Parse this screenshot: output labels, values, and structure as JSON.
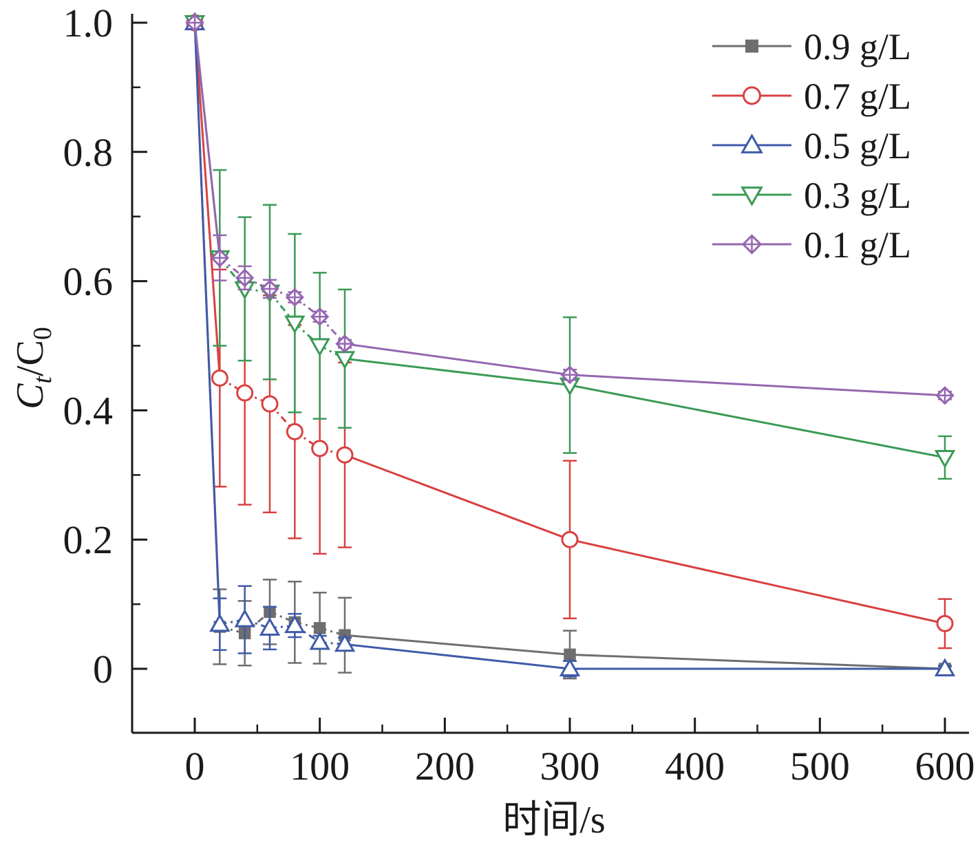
{
  "chart_data": {
    "type": "line",
    "xlabel": "时间/s",
    "ylabel_parts": {
      "main": "C",
      "sub": "t",
      "sep": "/C",
      "sub2": "0"
    },
    "xlim": [
      -50,
      620
    ],
    "ylim": [
      -0.1,
      1.0
    ],
    "xticks": [
      0,
      100,
      200,
      300,
      400,
      500,
      600
    ],
    "xtick_labels": [
      "0",
      "100",
      "200",
      "300",
      "400",
      "500",
      "600"
    ],
    "yticks": [
      0,
      0.2,
      0.4,
      0.6,
      0.8,
      1.0
    ],
    "ytick_labels": [
      "0",
      "0.2",
      "0.4",
      "0.6",
      "0.8",
      "1.0"
    ],
    "legend_position": "top-right",
    "x": [
      0,
      20,
      40,
      60,
      80,
      100,
      120,
      300,
      600
    ],
    "series": [
      {
        "name": "0.9 g/L",
        "color": "#6e6e6e",
        "marker": "filled-square",
        "dashed_until": 120,
        "values": [
          1.0,
          0.065,
          0.055,
          0.088,
          0.072,
          0.063,
          0.052,
          0.022,
          0.0
        ],
        "errors": [
          0,
          0.058,
          0.05,
          0.05,
          0.063,
          0.055,
          0.058,
          0.037,
          0.005
        ]
      },
      {
        "name": "0.7 g/L",
        "color": "#d94040",
        "marker": "circle",
        "dashed_until": 120,
        "values": [
          1.0,
          0.45,
          0.427,
          0.41,
          0.367,
          0.341,
          0.331,
          0.2,
          0.07
        ],
        "errors": [
          0,
          0.168,
          0.173,
          0.168,
          0.165,
          0.163,
          0.143,
          0.122,
          0.038
        ]
      },
      {
        "name": "0.5 g/L",
        "color": "#3f5aa8",
        "marker": "triangle-up",
        "dashed_until": 120,
        "values": [
          1.0,
          0.069,
          0.076,
          0.063,
          0.067,
          0.041,
          0.038,
          0.0,
          0.0
        ],
        "errors": [
          0,
          0.04,
          0.052,
          0.033,
          0.018,
          0.01,
          0.01,
          0.012,
          0.004
        ]
      },
      {
        "name": "0.3 g/L",
        "color": "#3a9a55",
        "marker": "triangle-down",
        "dashed_until": 120,
        "values": [
          1.0,
          0.636,
          0.588,
          0.583,
          0.535,
          0.5,
          0.48,
          0.439,
          0.327
        ],
        "errors": [
          0,
          0.136,
          0.111,
          0.135,
          0.138,
          0.113,
          0.107,
          0.105,
          0.033
        ]
      },
      {
        "name": "0.1 g/L",
        "color": "#9566b0",
        "marker": "crossed-diamond",
        "dashed_until": 120,
        "values": [
          1.0,
          0.636,
          0.605,
          0.588,
          0.575,
          0.545,
          0.503,
          0.455,
          0.423
        ],
        "errors": [
          0,
          0.035,
          0.018,
          0.014,
          0.008,
          0.008,
          0.006,
          0.008,
          0.006
        ]
      }
    ]
  }
}
